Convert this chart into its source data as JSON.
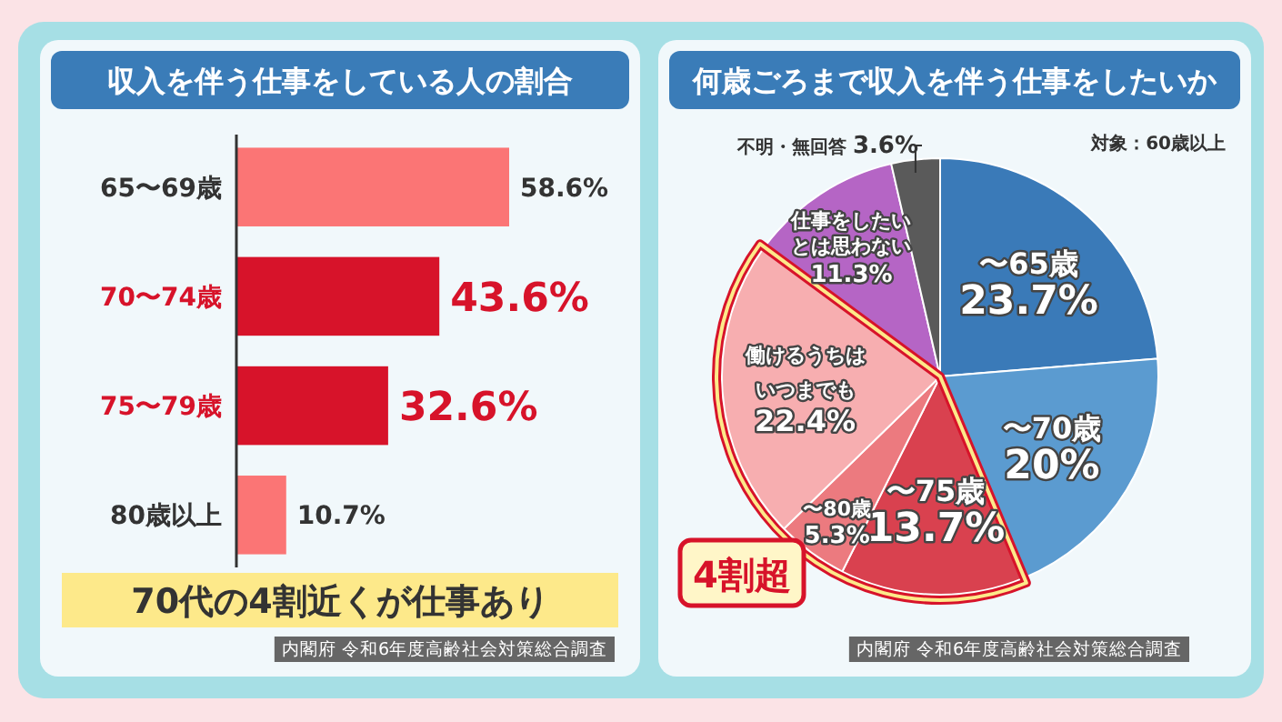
{
  "chart_data": [
    {
      "type": "bar",
      "orientation": "horizontal",
      "title": "収入を伴う仕事をしている人の割合",
      "categories": [
        "65〜69歳",
        "70〜74歳",
        "75〜79歳",
        "80歳以上"
      ],
      "values": [
        58.6,
        43.6,
        32.6,
        10.7
      ],
      "colors": [
        "#fb7575",
        "#d7132a",
        "#d7132a",
        "#fb7575"
      ],
      "value_labels": [
        "58.6%",
        "43.6%",
        "32.6%",
        "10.7%"
      ],
      "tick_labels": "y",
      "annotations": [
        "70代の4割近くが仕事あり",
        "内閣府 令和6年度高齢社会対策総合調査"
      ]
    },
    {
      "type": "pie",
      "title": "何歳ごろまで収入を伴う仕事をしたいか",
      "categories": [
        "〜65歳",
        "〜70歳",
        "〜75歳",
        "〜80歳",
        "働けるうちはいつまでも",
        "仕事をしたいとは思わない",
        "不明・無回答"
      ],
      "values": [
        23.7,
        20,
        13.7,
        5.3,
        22.4,
        11.3,
        3.6
      ],
      "colors": [
        "#3a7ab8",
        "#5b9bd0",
        "#d9414f",
        "#ec7a7f",
        "#f7aeb0",
        "#b565c5",
        "#5a5a5a"
      ],
      "value_labels": [
        "23.7%",
        "20%",
        "13.7%",
        "5.3%",
        "22.4%",
        "11.3%",
        "3.6%"
      ],
      "annotations": [
        "対象：60歳以上",
        "4割超",
        "内閣府 令和6年度高齢社会対策総合調査"
      ]
    }
  ]
}
